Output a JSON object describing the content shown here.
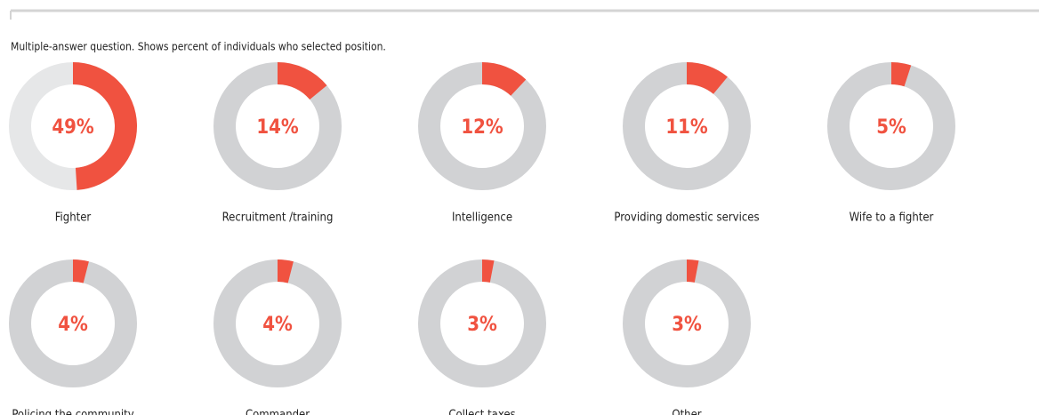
{
  "subtitle": "Multiple-answer question. Shows percent of individuals who selected position.",
  "chart_data": [
    {
      "type": "donut",
      "title": "Fighter",
      "values": [
        49
      ],
      "value_labels": [
        "49%"
      ],
      "color": "#f05240",
      "track_color": "#e6e7e8"
    },
    {
      "type": "donut",
      "title": "Recruitment /training",
      "values": [
        14
      ],
      "value_labels": [
        "14%"
      ],
      "color": "#f05240",
      "track_color": "#d1d2d4"
    },
    {
      "type": "donut",
      "title": "Intelligence",
      "values": [
        12
      ],
      "value_labels": [
        "12%"
      ],
      "color": "#f05240",
      "track_color": "#d1d2d4"
    },
    {
      "type": "donut",
      "title": "Providing domestic services",
      "values": [
        11
      ],
      "value_labels": [
        "11%"
      ],
      "color": "#f05240",
      "track_color": "#d1d2d4"
    },
    {
      "type": "donut",
      "title": "Wife to a fighter",
      "values": [
        5
      ],
      "value_labels": [
        "5%"
      ],
      "color": "#f05240",
      "track_color": "#d1d2d4"
    },
    {
      "type": "donut",
      "title": "Policing the community",
      "values": [
        4
      ],
      "value_labels": [
        "4%"
      ],
      "color": "#f05240",
      "track_color": "#d1d2d4"
    },
    {
      "type": "donut",
      "title": "Commander",
      "values": [
        4
      ],
      "value_labels": [
        "4%"
      ],
      "color": "#f05240",
      "track_color": "#d1d2d4"
    },
    {
      "type": "donut",
      "title": "Collect taxes",
      "values": [
        3
      ],
      "value_labels": [
        "3%"
      ],
      "color": "#f05240",
      "track_color": "#d1d2d4"
    },
    {
      "type": "donut",
      "title": "Other",
      "values": [
        3
      ],
      "value_labels": [
        "3%"
      ],
      "color": "#f05240",
      "track_color": "#d1d2d4"
    }
  ]
}
